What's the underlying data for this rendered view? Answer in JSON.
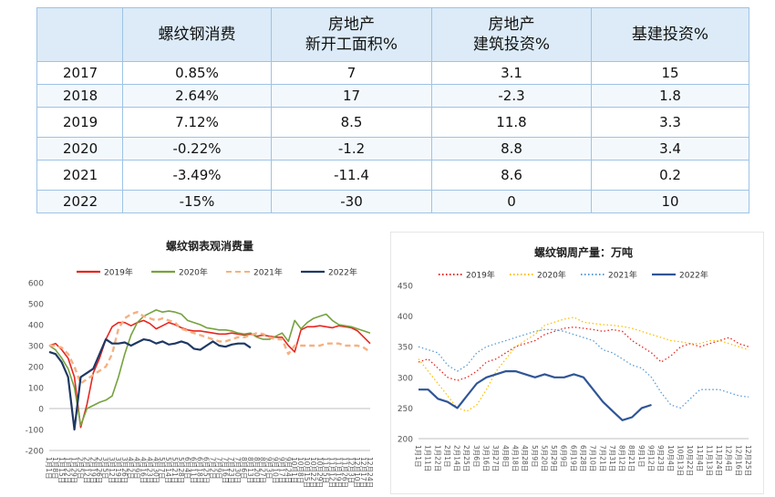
{
  "table": {
    "headers": [
      "",
      "螺纹钢消费",
      "房地产\n新开工面积%",
      "房地产\n建筑投资%",
      "基建投资%"
    ],
    "rows": [
      [
        "2017",
        "0.85%",
        "7",
        "3.1",
        "15"
      ],
      [
        "2018",
        "2.64%",
        "17",
        "-2.3",
        "1.8"
      ],
      [
        "2019",
        "7.12%",
        "8.5",
        "11.8",
        "3.3"
      ],
      [
        "2020",
        "-0.22%",
        "-1.2",
        "8.8",
        "3.4"
      ],
      [
        "2021",
        "-3.49%",
        "-11.4",
        "8.6",
        "0.2"
      ],
      [
        "2022",
        "-15%",
        "-30",
        "0",
        "10"
      ]
    ]
  },
  "chart_data": [
    {
      "type": "line",
      "title": "螺纹钢表观消费量",
      "ylim": [
        -200,
        600
      ],
      "yticks": [
        -200,
        -100,
        0,
        100,
        200,
        300,
        400,
        500,
        600
      ],
      "tick_labels": [
        "1月1日",
        "1月8日",
        "1月15日",
        "1月22日",
        "1月29日",
        "2月5日",
        "2月12日",
        "2月19日",
        "2月26日",
        "3月5日",
        "3月12日",
        "3月19日",
        "3月26日",
        "4月2日",
        "4月9日",
        "4月16日",
        "4月23日",
        "4月30日",
        "5月7日",
        "5月14日",
        "5月21日",
        "5月28日",
        "6月4日",
        "6月11日",
        "6月18日",
        "6月25日",
        "7月2日",
        "7月9日",
        "7月16日",
        "7月23日",
        "7月30日",
        "8月6日",
        "8月13日",
        "8月20日",
        "8月27日",
        "9月3日",
        "9月10日",
        "9月17日",
        "9月24日",
        "10月1日",
        "10月8日",
        "10月15日",
        "10月22日",
        "10月29日",
        "11月5日",
        "11月12日",
        "11月19日",
        "11月26日",
        "12月3日",
        "12月10日",
        "12月17日",
        "12月24日"
      ],
      "series": [
        {
          "name": "2019年",
          "color": "#e8261f",
          "dash": "solid",
          "values": [
            300,
            310,
            280,
            240,
            150,
            -90,
            20,
            170,
            240,
            330,
            390,
            410,
            410,
            395,
            410,
            420,
            405,
            380,
            395,
            410,
            400,
            385,
            375,
            370,
            370,
            365,
            360,
            355,
            355,
            360,
            355,
            350,
            355,
            345,
            350,
            345,
            340,
            340,
            300,
            270,
            375,
            390,
            390,
            395,
            390,
            385,
            395,
            390,
            385,
            370,
            340,
            310
          ]
        },
        {
          "name": "2020年",
          "color": "#76a23f",
          "dash": "solid",
          "values": [
            300,
            280,
            240,
            190,
            100,
            -80,
            0,
            15,
            30,
            40,
            60,
            150,
            260,
            350,
            410,
            440,
            455,
            470,
            460,
            465,
            460,
            450,
            420,
            410,
            400,
            385,
            380,
            375,
            375,
            370,
            360,
            355,
            360,
            340,
            330,
            330,
            345,
            360,
            320,
            420,
            380,
            410,
            430,
            440,
            450,
            420,
            400,
            395,
            390,
            380,
            370,
            360
          ]
        },
        {
          "name": "2021年",
          "color": "#f4b183",
          "dash": "dashed",
          "values": [
            300,
            300,
            290,
            260,
            200,
            120,
            140,
            160,
            180,
            200,
            260,
            380,
            430,
            450,
            460,
            440,
            430,
            420,
            430,
            420,
            410,
            380,
            370,
            360,
            350,
            340,
            330,
            320,
            320,
            330,
            340,
            340,
            350,
            360,
            355,
            340,
            330,
            330,
            260,
            300,
            300,
            300,
            300,
            300,
            310,
            310,
            310,
            300,
            300,
            300,
            290,
            270
          ]
        },
        {
          "name": "2022年",
          "color": "#1f3864",
          "dash": "solid",
          "values": [
            270,
            260,
            220,
            150,
            -100,
            150,
            170,
            190,
            260,
            330,
            310,
            310,
            315,
            300,
            315,
            330,
            325,
            310,
            320,
            305,
            310,
            320,
            310,
            285,
            280,
            300,
            320,
            300,
            295,
            305,
            310,
            310,
            290
          ]
        }
      ]
    },
    {
      "type": "line",
      "title": "螺纹钢周产量：万吨",
      "ylim": [
        200,
        450
      ],
      "yticks": [
        200,
        250,
        300,
        350,
        400,
        450
      ],
      "tick_labels": [
        "1月1日",
        "1月11日",
        "1月22日",
        "2月1日",
        "2月14日",
        "2月25日",
        "3月6日",
        "3月16日",
        "3月27日",
        "4月8日",
        "4月18日",
        "4月28日",
        "5月9日",
        "5月20日",
        "5月29日",
        "6月9日",
        "6月19日",
        "6月28日",
        "7月10日",
        "7月21日",
        "7月31日",
        "8月12日",
        "8月21日",
        "9月1日",
        "9月12日",
        "9月23日",
        "10月4日",
        "10月13日",
        "10月22日",
        "11月4日",
        "11月13日",
        "11月24日",
        "12月4日",
        "12月16日",
        "12月25日"
      ],
      "series": [
        {
          "name": "2019年",
          "color": "#e8261f",
          "dash": "dotted",
          "values": [
            325,
            330,
            315,
            300,
            295,
            300,
            310,
            325,
            330,
            340,
            350,
            355,
            360,
            370,
            375,
            380,
            382,
            380,
            378,
            375,
            378,
            375,
            360,
            350,
            340,
            325,
            335,
            350,
            355,
            350,
            355,
            360,
            365,
            355,
            350
          ]
        },
        {
          "name": "2020年",
          "color": "#ffc000",
          "dash": "dotted",
          "values": [
            330,
            310,
            290,
            270,
            250,
            245,
            255,
            280,
            310,
            330,
            350,
            360,
            370,
            385,
            390,
            395,
            398,
            390,
            388,
            386,
            385,
            383,
            380,
            375,
            370,
            365,
            360,
            358,
            355,
            355,
            360,
            360,
            355,
            350,
            345
          ]
        },
        {
          "name": "2021年",
          "color": "#5b9bd5",
          "dash": "dotted",
          "values": [
            350,
            345,
            340,
            320,
            310,
            320,
            340,
            350,
            355,
            360,
            365,
            370,
            375,
            378,
            378,
            375,
            370,
            365,
            360,
            345,
            340,
            330,
            320,
            315,
            300,
            275,
            255,
            250,
            265,
            280,
            280,
            280,
            275,
            270,
            268
          ]
        },
        {
          "name": "2022年",
          "color": "#2f5597",
          "dash": "solid",
          "values": [
            280,
            280,
            265,
            260,
            250,
            270,
            290,
            300,
            305,
            310,
            310,
            305,
            300,
            305,
            300,
            300,
            305,
            300,
            280,
            260,
            245,
            230,
            235,
            250,
            255
          ]
        }
      ]
    }
  ]
}
